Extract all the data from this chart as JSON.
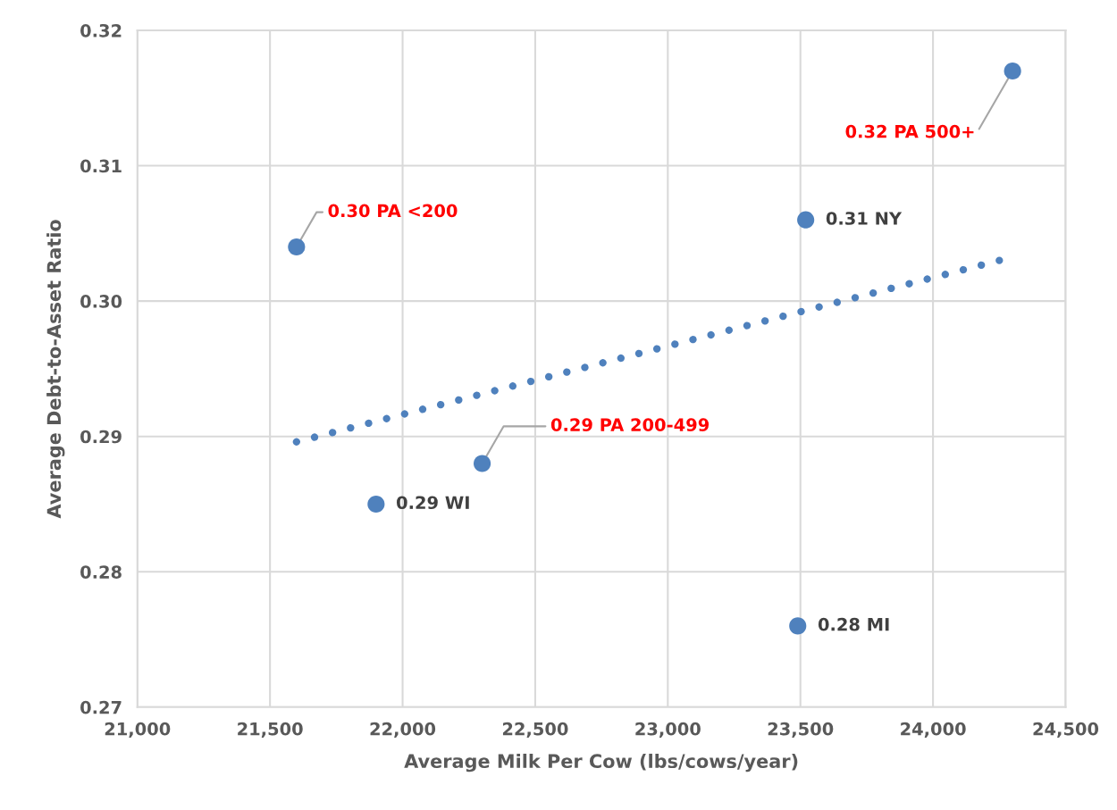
{
  "chart_data": {
    "type": "scatter",
    "xlabel": "Average Milk Per Cow (lbs/cows/year)",
    "ylabel": "Average Debt-to-Asset Ratio",
    "series": [
      {
        "type": "scatter",
        "color": "#4f81bd",
        "marker": "circle",
        "x": [
          21600,
          22300,
          24300,
          23520,
          21900,
          23490
        ],
        "values": [
          0.304,
          0.288,
          0.317,
          0.306,
          0.285,
          0.276
        ]
      },
      {
        "type": "line",
        "color": "#4f81bd",
        "line_style": "dotted",
        "x": [
          21600,
          24250
        ],
        "values": [
          0.2896,
          0.303
        ]
      }
    ],
    "annotations": [
      {
        "text": "0.30 PA <200",
        "x": 21600,
        "y": 0.304
      },
      {
        "text": "0.29 PA 200-499",
        "x": 22300,
        "y": 0.288
      },
      {
        "text": "0.32 PA 500+",
        "x": 24300,
        "y": 0.317
      },
      {
        "text": "0.31 NY",
        "x": 23520,
        "y": 0.306
      },
      {
        "text": "0.29 WI",
        "x": 21900,
        "y": 0.285
      },
      {
        "text": "0.28 MI",
        "x": 23490,
        "y": 0.276
      }
    ],
    "xlim": [
      21000,
      24500
    ],
    "xticks": [
      {
        "value": 21000,
        "label": "21,000"
      },
      {
        "value": 21500,
        "label": "21,500"
      },
      {
        "value": 22000,
        "label": "22,000"
      },
      {
        "value": 22500,
        "label": "22,500"
      },
      {
        "value": 23000,
        "label": "23,000"
      },
      {
        "value": 23500,
        "label": "23,500"
      },
      {
        "value": 24000,
        "label": "24,000"
      },
      {
        "value": 24500,
        "label": "24,500"
      }
    ],
    "ylim": [
      0.27,
      0.32
    ],
    "yticks": [
      {
        "value": 0.27,
        "label": "0.27"
      },
      {
        "value": 0.28,
        "label": "0.28"
      },
      {
        "value": 0.29,
        "label": "0.29"
      },
      {
        "value": 0.3,
        "label": "0.30"
      },
      {
        "value": 0.31,
        "label": "0.31"
      },
      {
        "value": 0.32,
        "label": "0.32"
      }
    ],
    "grid": true,
    "legend": false
  }
}
